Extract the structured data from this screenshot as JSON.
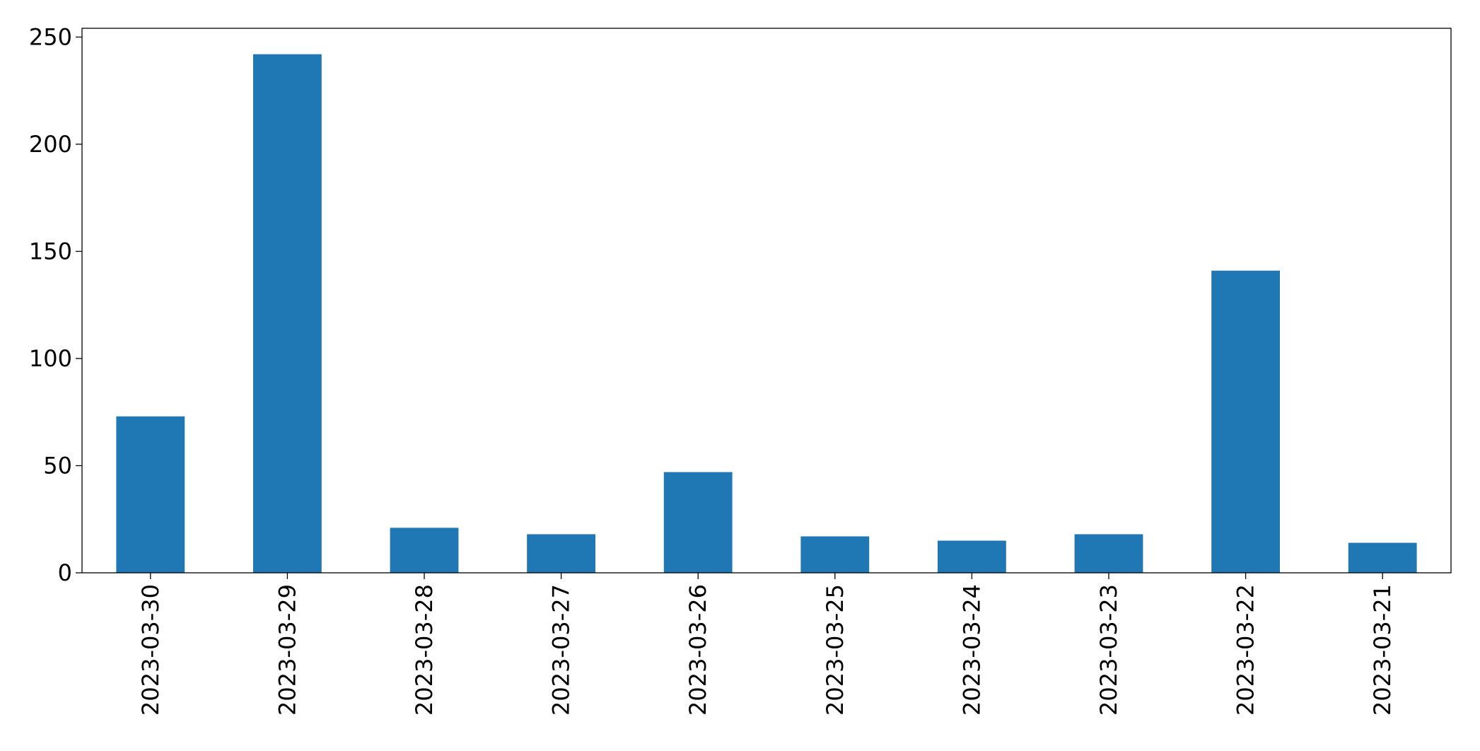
{
  "chart_data": {
    "type": "bar",
    "categories": [
      "2023-03-30",
      "2023-03-29",
      "2023-03-28",
      "2023-03-27",
      "2023-03-26",
      "2023-03-25",
      "2023-03-24",
      "2023-03-23",
      "2023-03-22",
      "2023-03-21"
    ],
    "values": [
      73,
      242,
      21,
      18,
      47,
      17,
      15,
      18,
      141,
      14
    ],
    "color": "#1f77b4",
    "ylim": [
      0,
      254.1
    ],
    "yticks": [
      0,
      50,
      100,
      150,
      200,
      250
    ],
    "grid": false
  }
}
